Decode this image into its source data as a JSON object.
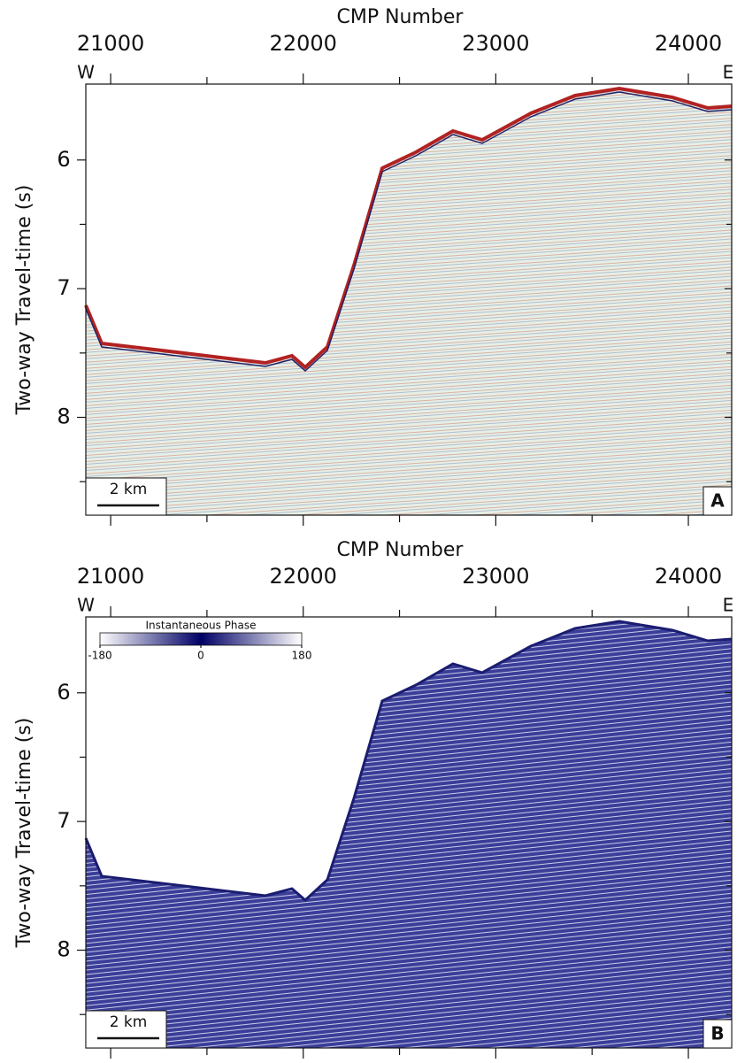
{
  "chart_data": [
    {
      "type": "seismic",
      "panel_label": "A",
      "xlabel": "CMP Number",
      "ylabel": "Two-way Travel-time (s)",
      "xlim": [
        20871,
        24225
      ],
      "xticks": [
        21000,
        22000,
        23000,
        24000
      ],
      "xminorticks": [
        21500,
        22500,
        23500
      ],
      "ylim": [
        5.41,
        8.76
      ],
      "yticks": [
        6,
        7,
        8
      ],
      "yminorticks": [
        6.5,
        7.5,
        8.5
      ],
      "west_label": "W",
      "east_label": "E",
      "scale_bar": "2 km"
    },
    {
      "type": "seismic",
      "panel_label": "B",
      "xlabel": "CMP Number",
      "ylabel": "Two-way Travel-time (s)",
      "xlim": [
        20871,
        24225
      ],
      "xticks": [
        21000,
        22000,
        23000,
        24000
      ],
      "xminorticks": [
        21500,
        22500,
        23500
      ],
      "ylim": [
        5.41,
        8.76
      ],
      "yticks": [
        6,
        7,
        8
      ],
      "yminorticks": [
        6.5,
        7.5,
        8.5
      ],
      "west_label": "W",
      "east_label": "E",
      "scale_bar": "2 km",
      "colorbar": {
        "title": "Instantaneous Phase",
        "lim": [
          -180,
          180
        ],
        "ticks": [
          -180,
          0,
          180
        ]
      }
    }
  ]
}
